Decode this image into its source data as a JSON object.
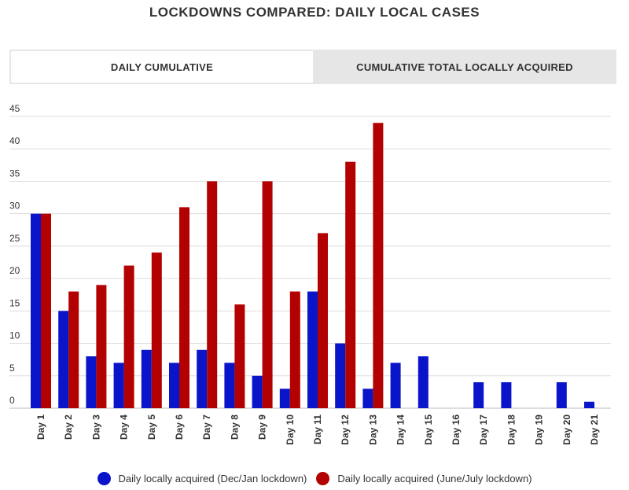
{
  "title": "LOCKDOWNS COMPARED: DAILY LOCAL CASES",
  "tabs": [
    {
      "label": "DAILY CUMULATIVE",
      "active": true
    },
    {
      "label": "CUMULATIVE TOTAL LOCALLY ACQUIRED",
      "active": false
    }
  ],
  "chart_data": {
    "type": "bar",
    "categories": [
      "Day 1",
      "Day 2",
      "Day 3",
      "Day 4",
      "Day 5",
      "Day 6",
      "Day 7",
      "Day 8",
      "Day 9",
      "Day 10",
      "Day 11",
      "Day 12",
      "Day 13",
      "Day 14",
      "Day 15",
      "Day 16",
      "Day 17",
      "Day 18",
      "Day 19",
      "Day 20",
      "Day 21"
    ],
    "series": [
      {
        "name": "Daily locally acquired (Dec/Jan lockdown)",
        "color": "#0a14c8",
        "values": [
          30,
          15,
          8,
          7,
          9,
          7,
          9,
          7,
          5,
          3,
          18,
          10,
          3,
          7,
          8,
          0,
          4,
          4,
          0,
          4,
          1
        ]
      },
      {
        "name": "Daily locally acquired (June/July lockdown)",
        "color": "#b30000",
        "values": [
          30,
          18,
          19,
          22,
          24,
          31,
          35,
          16,
          35,
          18,
          27,
          38,
          44,
          null,
          null,
          null,
          null,
          null,
          null,
          null,
          null
        ]
      }
    ],
    "yticks": [
      0,
      5,
      10,
      15,
      20,
      25,
      30,
      35,
      40,
      45
    ],
    "ylim": [
      0,
      45
    ],
    "grid": true,
    "legend_position": "bottom"
  }
}
